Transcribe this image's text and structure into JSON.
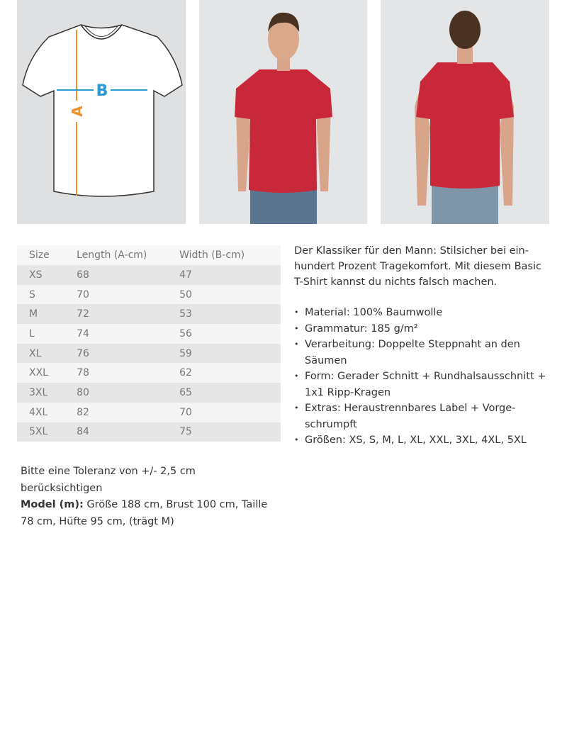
{
  "diagram": {
    "label_a": "A",
    "label_b": "B",
    "colors": {
      "a": "#f0902a",
      "b": "#2a9ad4"
    }
  },
  "photos": {
    "front_alt": "Model front view, red t-shirt",
    "back_alt": "Model back view, red t-shirt",
    "shirt_color": "#c8283a"
  },
  "size_table": {
    "headers": [
      "Size",
      "Length (A-cm)",
      "Width (B-cm)"
    ],
    "rows": [
      [
        "XS",
        "68",
        "47"
      ],
      [
        "S",
        "70",
        "50"
      ],
      [
        "M",
        "72",
        "53"
      ],
      [
        "L",
        "74",
        "56"
      ],
      [
        "XL",
        "76",
        "59"
      ],
      [
        "XXL",
        "78",
        "62"
      ],
      [
        "3XL",
        "80",
        "65"
      ],
      [
        "4XL",
        "82",
        "70"
      ],
      [
        "5XL",
        "84",
        "75"
      ]
    ]
  },
  "description": {
    "intro": "Der Klassiker für den Mann: Stilsicher bei ein­hundert Prozent Tragekomfort. Mit diesem Basic T-Shirt kannst du nichts falsch machen.",
    "bullets": [
      "Material: 100% Baumwolle",
      "Grammatur: 185 g/m²",
      "Verarbeitung: Doppelte Steppnaht an den Säumen",
      "Form: Gerader Schnitt + Rundhalsausschnitt + 1x1 Ripp-Kragen",
      "Extras: Heraustrennbares Label + Vorge­schrumpft",
      "Größen: XS, S, M, L, XL, XXL, 3XL, 4XL, 5XL"
    ]
  },
  "note": {
    "tolerance": "Bitte eine Toleranz von +/- 2,5 cm berücksichtigen",
    "model_label": "Model (m):",
    "model_text": " Größe 188 cm, Brust 100 cm, Taille 78 cm, Hüfte 95 cm, (trägt M)"
  }
}
